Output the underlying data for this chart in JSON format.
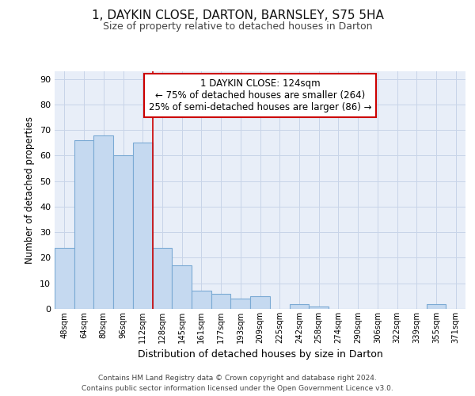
{
  "title1": "1, DAYKIN CLOSE, DARTON, BARNSLEY, S75 5HA",
  "title2": "Size of property relative to detached houses in Darton",
  "xlabel": "Distribution of detached houses by size in Darton",
  "ylabel": "Number of detached properties",
  "categories": [
    "48sqm",
    "64sqm",
    "80sqm",
    "96sqm",
    "112sqm",
    "128sqm",
    "145sqm",
    "161sqm",
    "177sqm",
    "193sqm",
    "209sqm",
    "225sqm",
    "242sqm",
    "258sqm",
    "274sqm",
    "290sqm",
    "306sqm",
    "322sqm",
    "339sqm",
    "355sqm",
    "371sqm"
  ],
  "values": [
    24,
    66,
    68,
    60,
    65,
    24,
    17,
    7,
    6,
    4,
    5,
    0,
    2,
    1,
    0,
    0,
    0,
    0,
    0,
    2,
    0
  ],
  "bar_color": "#c5d9f0",
  "bar_edge_color": "#7baad4",
  "background_color": "#e8eef8",
  "property_line_x": 5,
  "annotation_lines": [
    "1 DAYKIN CLOSE: 124sqm",
    "← 75% of detached houses are smaller (264)",
    "25% of semi-detached houses are larger (86) →"
  ],
  "annotation_box_color": "#ffffff",
  "annotation_box_edge": "#cc0000",
  "property_line_color": "#cc0000",
  "ylim": [
    0,
    93
  ],
  "yticks": [
    0,
    10,
    20,
    30,
    40,
    50,
    60,
    70,
    80,
    90
  ],
  "footer1": "Contains HM Land Registry data © Crown copyright and database right 2024.",
  "footer2": "Contains public sector information licensed under the Open Government Licence v3.0."
}
